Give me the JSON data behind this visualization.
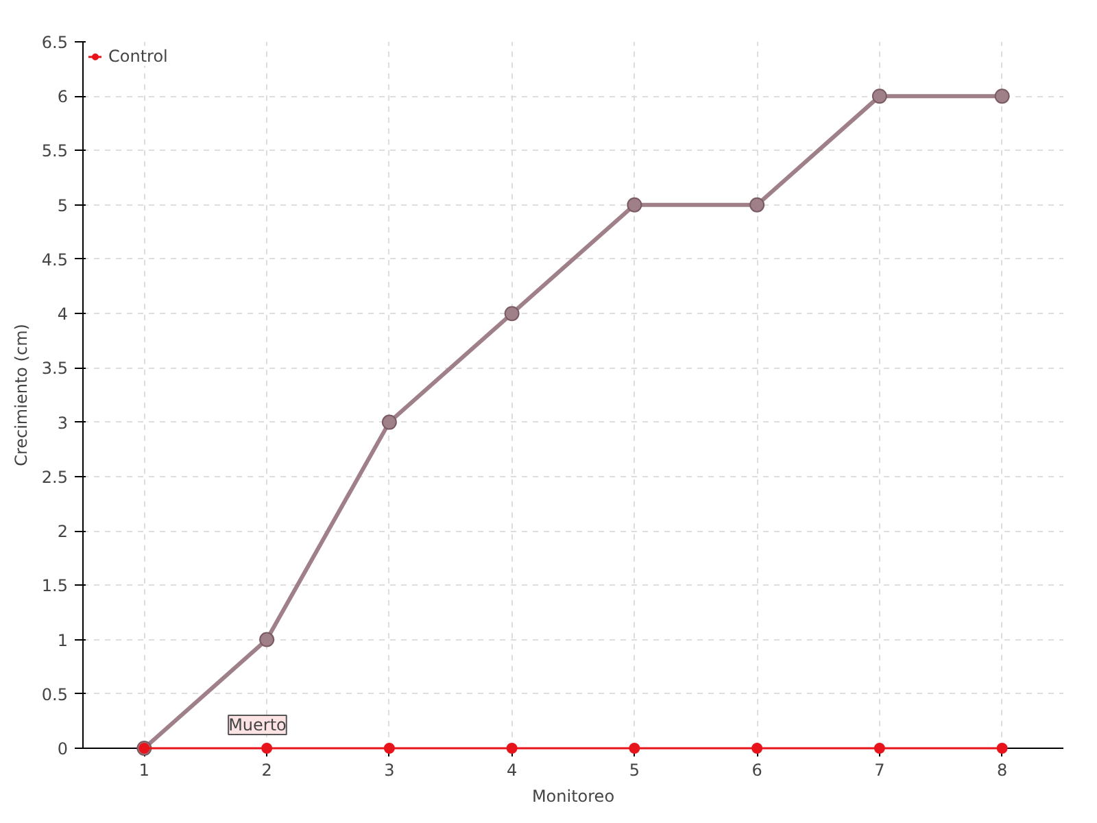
{
  "chart_data": {
    "type": "line",
    "xlabel": "Monitoreo",
    "ylabel": "Crecimiento (cm)",
    "categories": [
      "1",
      "2",
      "3",
      "4",
      "5",
      "6",
      "7",
      "8"
    ],
    "series": [
      {
        "color": "#a08088",
        "values": [
          0,
          1,
          3,
          4,
          5,
          5,
          6,
          6
        ]
      },
      {
        "name": "Control",
        "color": "#e8141c",
        "values": [
          0,
          0,
          0,
          0,
          0,
          0,
          0,
          0
        ]
      }
    ],
    "ylim": [
      0,
      6.5
    ],
    "yticks": [
      0,
      0.5,
      1,
      1.5,
      2,
      2.5,
      3,
      3.5,
      4,
      4.5,
      5,
      5.5,
      6,
      6.5
    ],
    "grid": true,
    "legend": "top left",
    "marker": "circle",
    "line_style": "solid",
    "annotations": [
      {
        "text": "Muerto",
        "x": "2",
        "y": 0
      }
    ]
  }
}
